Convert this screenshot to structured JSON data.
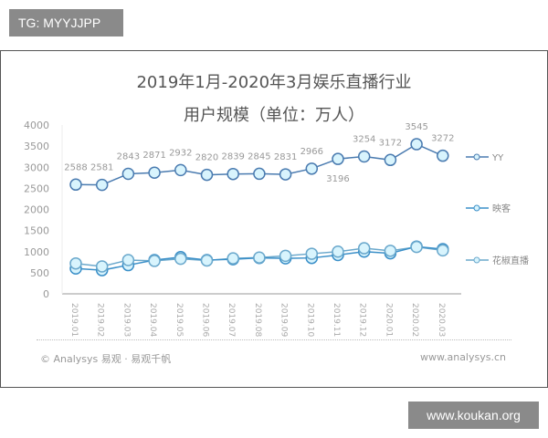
{
  "overlay_tag": "TG: MYYJJPP",
  "watermark": "www.koukan.org",
  "footer": {
    "left": "© Analysys 易观 · 易观千帆",
    "right": "www.analysys.cn"
  },
  "chart_data": {
    "type": "line",
    "title": "2019年1月-2020年3月娱乐直播行业",
    "subtitle": "用户规模（单位：万人）",
    "x": [
      "2019.01",
      "2019.02",
      "2019.03",
      "2019.04",
      "2019.05",
      "2019.06",
      "2019.07",
      "2019.08",
      "2019.09",
      "2019.10",
      "2019.11",
      "2019.12",
      "2020.01",
      "2020.02",
      "2020.03"
    ],
    "ylim": [
      0,
      4000
    ],
    "yticks": [
      0,
      500,
      1000,
      1500,
      2000,
      2500,
      3000,
      3500,
      4000
    ],
    "grid": false,
    "legend": "right",
    "series": [
      {
        "name": "YY",
        "color": "#4a7bb0",
        "labeled": true,
        "values": [
          2588,
          2581,
          2843,
          2871,
          2932,
          2820,
          2839,
          2845,
          2831,
          2966,
          3196,
          3254,
          3172,
          3545,
          3272
        ]
      },
      {
        "name": "映客",
        "color": "#3a8fc8",
        "labeled": false,
        "values": [
          600,
          560,
          680,
          800,
          870,
          800,
          820,
          850,
          840,
          850,
          920,
          1000,
          960,
          1120,
          1060
        ]
      },
      {
        "name": "花椒直播",
        "color": "#6aa8cc",
        "labeled": false,
        "values": [
          720,
          650,
          800,
          780,
          830,
          790,
          840,
          860,
          900,
          950,
          1000,
          1080,
          1020,
          1110,
          1030
        ]
      }
    ]
  }
}
